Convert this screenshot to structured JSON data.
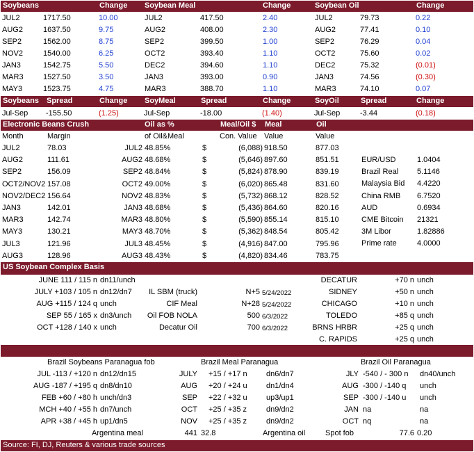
{
  "futures": {
    "headers": [
      "Soybeans",
      "Change",
      "Soybean Meal",
      "Change",
      "Soybean Oil",
      "Change"
    ],
    "rows": [
      {
        "sm": "JUL2",
        "sp": "1717.50",
        "sc": "10.00",
        "mm": "JUL2",
        "mp": "417.50",
        "mc": "2.40",
        "om": "JUL2",
        "op": "79.73",
        "oc": "0.22"
      },
      {
        "sm": "AUG2",
        "sp": "1637.50",
        "sc": "9.75",
        "mm": "AUG2",
        "mp": "408.00",
        "mc": "2.30",
        "om": "AUG2",
        "op": "77.41",
        "oc": "0.10"
      },
      {
        "sm": "SEP2",
        "sp": "1562.00",
        "sc": "8.75",
        "mm": "SEP2",
        "mp": "399.50",
        "mc": "1.00",
        "om": "SEP2",
        "op": "76.29",
        "oc": "0.04"
      },
      {
        "sm": "NOV2",
        "sp": "1540.00",
        "sc": "6.25",
        "mm": "OCT2",
        "mp": "393.40",
        "mc": "1.10",
        "om": "OCT2",
        "op": "75.60",
        "oc": "0.02"
      },
      {
        "sm": "JAN3",
        "sp": "1542.75",
        "sc": "5.50",
        "mm": "DEC2",
        "mp": "394.60",
        "mc": "1.10",
        "om": "DEC2",
        "op": "75.32",
        "oc": "(0.01)"
      },
      {
        "sm": "MAR3",
        "sp": "1527.50",
        "sc": "3.50",
        "mm": "JAN3",
        "mp": "393.00",
        "mc": "0.90",
        "om": "JAN3",
        "op": "74.56",
        "oc": "(0.30)"
      },
      {
        "sm": "MAY3",
        "sp": "1523.75",
        "sc": "4.75",
        "mm": "MAR3",
        "mp": "388.70",
        "mc": "1.10",
        "om": "MAR3",
        "op": "74.10",
        "oc": "0.07"
      }
    ]
  },
  "spreads": {
    "headers": [
      "Soybeans",
      "Spread",
      "Change",
      "SoyMeal",
      "Spread",
      "Change",
      "SoyOil",
      "Spread",
      "Change"
    ],
    "row": [
      "Jul-Sep",
      "-155.50",
      "(1.25)",
      "Jul-Sep",
      "-18.00",
      "(1.40)",
      "Jul-Sep",
      "-3.44",
      "(0.18)"
    ]
  },
  "crush": {
    "headers": [
      "Electronic Beans Crush",
      "Oil as %",
      "Meal/Oil $",
      "Meal",
      "Oil"
    ],
    "subheaders": [
      "Month",
      "Margin",
      "of Oil&Meal",
      "Con. Value",
      "Value",
      "Value"
    ],
    "rows": [
      {
        "m": "JUL2",
        "mg": "78.03",
        "m2": "JUL2",
        "pct": "48.85%",
        "cur": "$",
        "con": "(6,088)",
        "meal": "918.50",
        "oil": "877.03"
      },
      {
        "m": "AUG2",
        "mg": "111.61",
        "m2": "AUG2",
        "pct": "48.68%",
        "cur": "$",
        "con": "(5,646)",
        "meal": "897.60",
        "oil": "851.51"
      },
      {
        "m": "SEP2",
        "mg": "156.09",
        "m2": "SEP2",
        "pct": "48.84%",
        "cur": "$",
        "con": "(5,824)",
        "meal": "878.90",
        "oil": "839.19"
      },
      {
        "m": "OCT2/NOV2",
        "mg": "157.08",
        "m2": "OCT2",
        "pct": "49.00%",
        "cur": "$",
        "con": "(6,020)",
        "meal": "865.48",
        "oil": "831.60"
      },
      {
        "m": "NOV2/DEC2",
        "mg": "156.64",
        "m2": "NOV2",
        "pct": "48.83%",
        "cur": "$",
        "con": "(5,732)",
        "meal": "868.12",
        "oil": "828.52"
      },
      {
        "m": "JAN3",
        "mg": "142.01",
        "m2": "JAN3",
        "pct": "48.68%",
        "cur": "$",
        "con": "(5,436)",
        "meal": "864.60",
        "oil": "820.16"
      },
      {
        "m": "MAR3",
        "mg": "142.74",
        "m2": "MAR3",
        "pct": "48.80%",
        "cur": "$",
        "con": "(5,590)",
        "meal": "855.14",
        "oil": "815.10"
      },
      {
        "m": "MAY3",
        "mg": "130.21",
        "m2": "MAY3",
        "pct": "48.70%",
        "cur": "$",
        "con": "(5,362)",
        "meal": "848.54",
        "oil": "805.42"
      },
      {
        "m": "JUL3",
        "mg": "121.96",
        "m2": "JUL3",
        "pct": "48.45%",
        "cur": "$",
        "con": "(4,916)",
        "meal": "847.00",
        "oil": "795.96"
      },
      {
        "m": "AUG3",
        "mg": "128.96",
        "m2": "AUG3",
        "pct": "48.43%",
        "cur": "$",
        "con": "(4,820)",
        "meal": "834.46",
        "oil": "783.75"
      }
    ],
    "markets": [
      {
        "k": "EUR/USD",
        "v": "1.0404"
      },
      {
        "k": "Brazil Real",
        "v": "5.1146"
      },
      {
        "k": "Malaysia Bid",
        "v": "4.4220"
      },
      {
        "k": "China RMB",
        "v": "6.7520"
      },
      {
        "k": "AUD",
        "v": "0.6934"
      },
      {
        "k": "CME Bitcoin",
        "v": "21321"
      },
      {
        "k": "3M Libor",
        "v": "1.82886"
      },
      {
        "k": "Prime rate",
        "v": "4.0000"
      }
    ]
  },
  "basis": {
    "title": "US Soybean Complex Basis",
    "left": [
      {
        "a": "JUNE 111  / 115 n",
        "b": "dn11/unch"
      },
      {
        "a": "JULY +103 / 105 n",
        "b": "dn12/dn7"
      },
      {
        "a": "AUG +115 / 124 q",
        "b": "unch"
      },
      {
        "a": "SEP 55  / 165 x",
        "b": "dn3/unch"
      },
      {
        "a": "OCT +128 / 140 x",
        "b": "unch"
      }
    ],
    "mid": [
      {
        "a": "",
        "b": "",
        "c": ""
      },
      {
        "a": "IL SBM (truck)",
        "b": "N+5",
        "c": "5/24/2022"
      },
      {
        "a": "CIF Meal",
        "b": "N+28",
        "c": "5/24/2022"
      },
      {
        "a": "Oil FOB NOLA",
        "b": "500",
        "c": "6/3/2022"
      },
      {
        "a": "Decatur Oil",
        "b": "700",
        "c": "6/3/2022"
      }
    ],
    "right": [
      {
        "a": "DECATUR",
        "b": "+70 n",
        "c": "unch"
      },
      {
        "a": "SIDNEY",
        "b": "+50 n",
        "c": "unch"
      },
      {
        "a": "CHICAGO",
        "b": "+10 n",
        "c": "unch"
      },
      {
        "a": "TOLEDO",
        "b": "+85 q",
        "c": "unch"
      },
      {
        "a": "BRNS HRBR",
        "b": "+25 q",
        "c": "unch"
      },
      {
        "a": "C. RAPIDS",
        "b": "+25 q",
        "c": "unch"
      }
    ]
  },
  "brazil": {
    "soy_title": "Brazil Soybeans Paranagua fob",
    "meal_title": "Brazil Meal Paranagua",
    "oil_title": "Brazil Oil Paranagua",
    "soy": [
      {
        "a": "JUL -113 / +120 n",
        "b": "dn12/dn15"
      },
      {
        "a": "AUG -187 / +195 q",
        "b": "dn8/dn10"
      },
      {
        "a": "FEB  +60 / +80 h",
        "b": "unch/dn3"
      },
      {
        "a": "MCH  +40 / +55 h",
        "b": "dn7/unch"
      },
      {
        "a": "APR  +38 / +45 h",
        "b": "up1/dn5"
      }
    ],
    "meal": [
      {
        "a": "JULY",
        "b": "+15 / +17 n",
        "c": "dn6/dn7"
      },
      {
        "a": "AUG",
        "b": "+20 / +24 u",
        "c": "dn1/dn4"
      },
      {
        "a": "SEP",
        "b": "+22 / +32 u",
        "c": "up3/up1"
      },
      {
        "a": "OCT",
        "b": "+25 / +35 z",
        "c": "dn9/dn2"
      },
      {
        "a": "NOV",
        "b": "+25 / +35 z",
        "c": "dn9/dn2"
      }
    ],
    "oil": [
      {
        "a": "JLY",
        "b": "-540 / - 300 n",
        "c": "dn40/unch"
      },
      {
        "a": "AUG",
        "b": "-300 / -140 q",
        "c": "unch"
      },
      {
        "a": "SEP",
        "b": "-300 / -140 u",
        "c": "unch"
      },
      {
        "a": "JAN",
        "b": "na",
        "c": "na"
      },
      {
        "a": "OCT",
        "b": "nq",
        "c": "na"
      }
    ],
    "footer": {
      "am": "Argentina meal",
      "amv": "441",
      "amc": "32.8",
      "ao": "Argentina oil",
      "spot": "Spot fob",
      "aov": "77.6",
      "aoc": "0.20"
    }
  },
  "source": "Source: FI, DJ, Reuters & various trade sources"
}
